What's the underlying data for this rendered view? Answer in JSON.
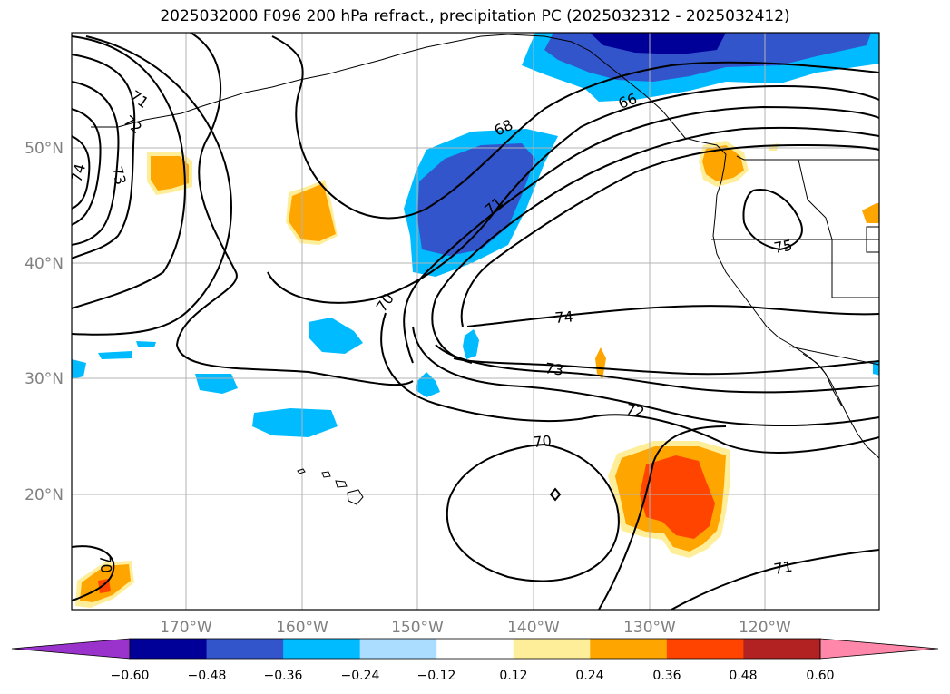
{
  "title": "2025032000 F096 200 hPa refract., precipitation PC (2025032312 - 2025032412)",
  "latitude_labels": [
    "50°N",
    "40°N",
    "30°N",
    "20°N"
  ],
  "longitude_labels": [
    "170°W",
    "160°W",
    "150°W",
    "140°W",
    "130°W",
    "120°W"
  ],
  "contour_labels": [
    "71",
    "72",
    "73",
    "74",
    "68",
    "71",
    "70",
    "74",
    "73",
    "72",
    "70",
    "75",
    "71",
    "70",
    "66"
  ],
  "colorbar": {
    "tick_labels": [
      "−0.60",
      "−0.48",
      "−0.36",
      "−0.24",
      "−0.12",
      "0.12",
      "0.24",
      "0.36",
      "0.48",
      "0.60"
    ],
    "colors": [
      "#9933cc",
      "#000099",
      "#3355cc",
      "#00bbff",
      "#aaddff",
      "#ffffff",
      "#ffee99",
      "#ffa500",
      "#ff4400",
      "#b22222",
      "#ff88aa"
    ]
  }
}
